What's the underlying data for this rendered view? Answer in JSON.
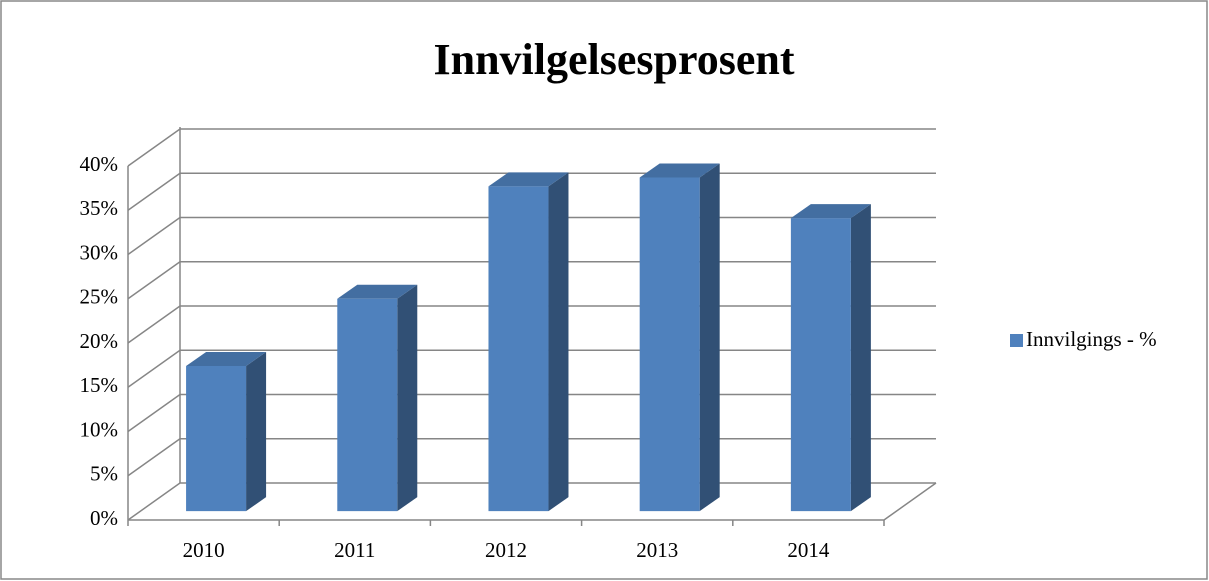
{
  "chart_data": {
    "type": "bar3d",
    "title": "Innvilgelsesprosent",
    "categories": [
      "2010",
      "2011",
      "2012",
      "2013",
      "2014"
    ],
    "series": [
      {
        "name": "Innvilgings - %",
        "color": "#4f81bd",
        "values": [
          16.4,
          24.0,
          36.7,
          37.7,
          33.1
        ]
      }
    ],
    "ylim": [
      0,
      40
    ],
    "yticks": [
      {
        "value": 0,
        "label": "0%"
      },
      {
        "value": 5,
        "label": "5%"
      },
      {
        "value": 10,
        "label": "10%"
      },
      {
        "value": 15,
        "label": "15%"
      },
      {
        "value": 20,
        "label": "20%"
      },
      {
        "value": 25,
        "label": "25%"
      },
      {
        "value": 30,
        "label": "30%"
      },
      {
        "value": 35,
        "label": "35%"
      },
      {
        "value": 40,
        "label": "40%"
      }
    ],
    "grid": true,
    "legend": "right"
  }
}
